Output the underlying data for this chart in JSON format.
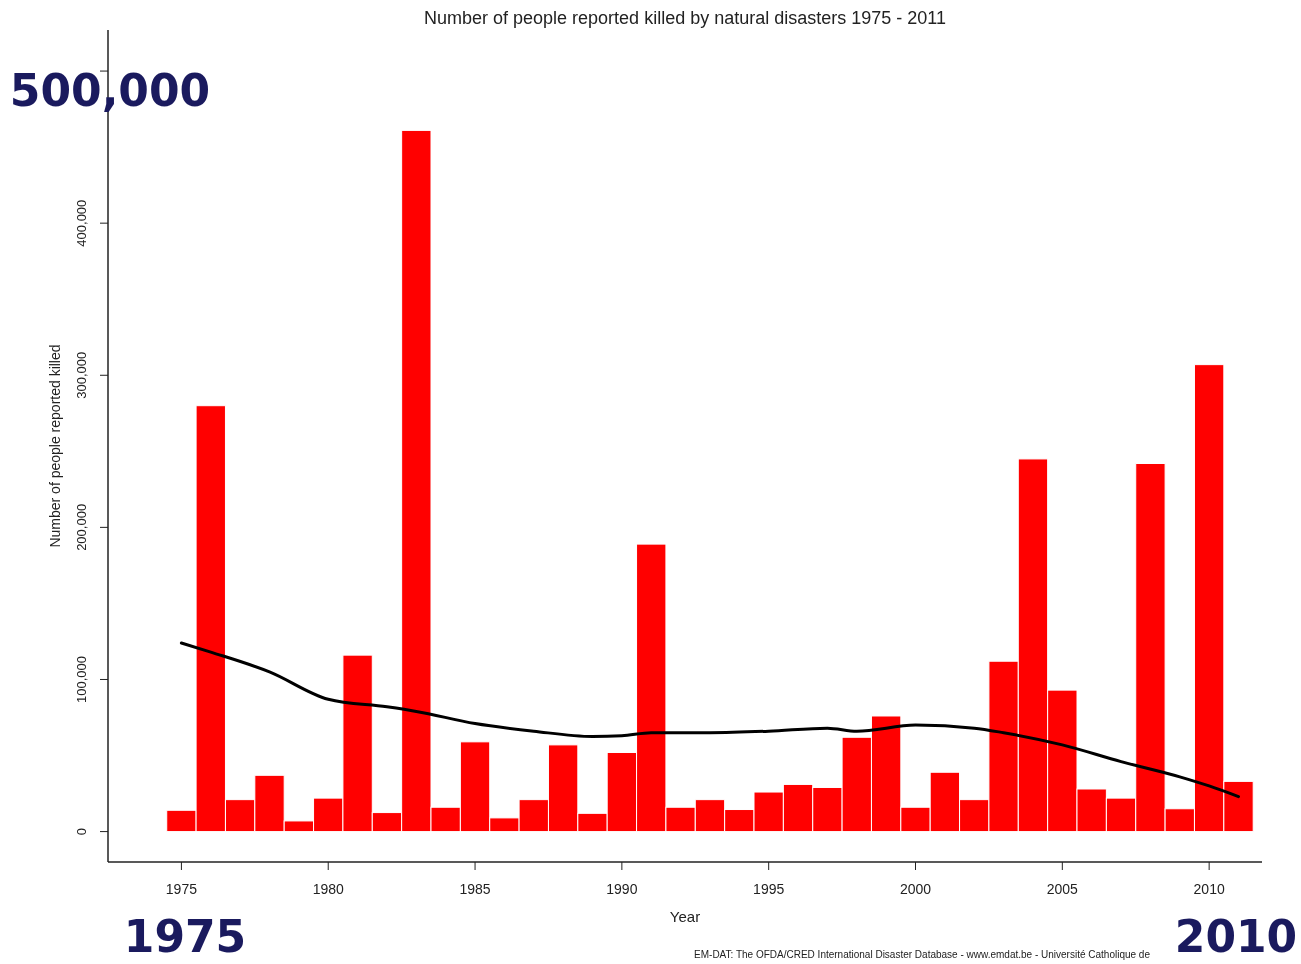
{
  "chart_data": {
    "type": "bar",
    "title": "Number of people reported killed by natural disasters 1975 - 2011",
    "xlabel": "Year",
    "ylabel": "Number of people reported killed",
    "x": [
      1975,
      1976,
      1977,
      1978,
      1979,
      1980,
      1981,
      1982,
      1983,
      1984,
      1985,
      1986,
      1987,
      1988,
      1989,
      1990,
      1991,
      1992,
      1993,
      1994,
      1995,
      1996,
      1997,
      1998,
      1999,
      2000,
      2001,
      2002,
      2003,
      2004,
      2005,
      2006,
      2007,
      2008,
      2009,
      2010,
      2011
    ],
    "xlim": [
      1972.5,
      2011.8
    ],
    "xticks": [
      1975,
      1980,
      1985,
      1990,
      1995,
      2000,
      2005,
      2010
    ],
    "ylim": [
      -20000,
      527000
    ],
    "yticks": [
      0,
      {
        "value": 100000,
        "label": "100,000"
      },
      {
        "value": 200000,
        "label": "200,000"
      },
      {
        "value": 300000,
        "label": "300,000"
      },
      {
        "value": 400000,
        "label": "400,000"
      },
      {
        "value": 500000,
        "label": null
      }
    ],
    "series": [
      {
        "color": "#ff0000",
        "values": [
          14000,
          280000,
          21000,
          37000,
          7000,
          22000,
          116000,
          12500,
          461000,
          16000,
          59000,
          9000,
          21000,
          57000,
          12000,
          52000,
          189000,
          16000,
          21000,
          14500,
          26000,
          31000,
          29000,
          62000,
          76000,
          16000,
          39000,
          21000,
          112000,
          245000,
          93000,
          28000,
          22000,
          242000,
          15000,
          307000,
          33000
        ]
      },
      {
        "type": "line",
        "color": "#000000",
        "x": [
          1975,
          1976,
          1978,
          1980,
          1982,
          1983,
          1985,
          1987,
          1989,
          1990,
          1991,
          1993,
          1995,
          1997,
          1998,
          2000,
          2002,
          2003,
          2005,
          2007,
          2009,
          2010,
          2011
        ],
        "values": [
          124000,
          118000,
          105000,
          87000,
          82000,
          79000,
          71000,
          66000,
          62500,
          63000,
          65000,
          65000,
          66000,
          68000,
          66000,
          70000,
          68000,
          65000,
          57000,
          46000,
          36000,
          30000,
          23000
        ]
      }
    ],
    "annotations": [
      "500,000",
      "1975",
      "2010",
      "EM-DAT: The OFDA/CRED International Disaster Database - www.emdat.be - Université Catholique de"
    ]
  }
}
